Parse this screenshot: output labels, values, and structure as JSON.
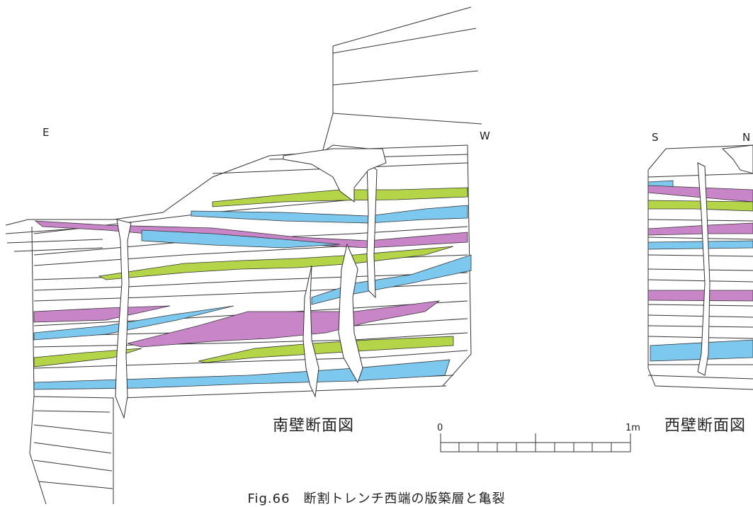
{
  "south_wall": {
    "label_left": "E",
    "label_right": "W",
    "title": "南壁断面図"
  },
  "west_wall": {
    "label_left": "S",
    "label_right": "N",
    "title": "西壁断面図"
  },
  "scale": {
    "start_label": "0",
    "end_label": "1m"
  },
  "caption": "Fig.66　断割トレンチ西端の版築層と亀裂",
  "colors": {
    "purple": "#c886c8",
    "green": "#b4d548",
    "blue": "#7cc8ee",
    "line": "#333333"
  }
}
